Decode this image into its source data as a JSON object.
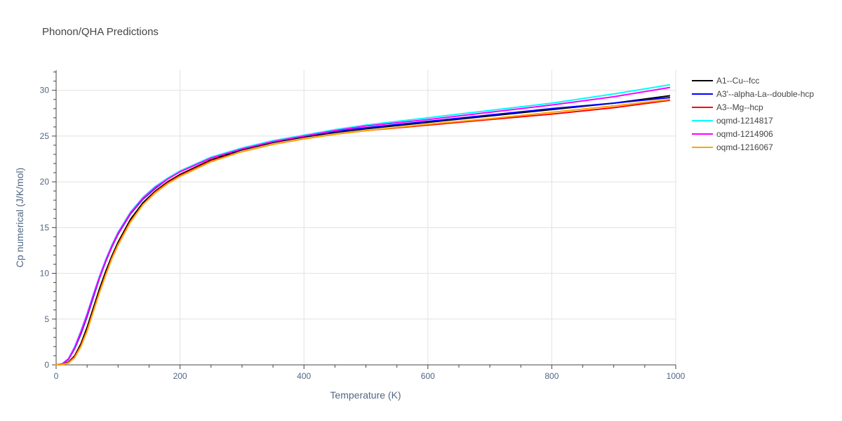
{
  "chart_data": {
    "type": "line",
    "title": "Phonon/QHA Predictions",
    "xlabel": "Temperature (K)",
    "ylabel": "Cp numerical (J/K/mol)",
    "xlim": [
      0,
      1000
    ],
    "ylim": [
      0,
      32.2
    ],
    "xticks": [
      0,
      200,
      400,
      600,
      800,
      1000
    ],
    "yticks": [
      0,
      5,
      10,
      15,
      20,
      25,
      30
    ],
    "grid": true,
    "legend": "top-right",
    "x": [
      0,
      10,
      20,
      30,
      40,
      50,
      60,
      70,
      80,
      90,
      100,
      120,
      140,
      160,
      180,
      200,
      250,
      300,
      350,
      400,
      450,
      500,
      600,
      700,
      800,
      900,
      990
    ],
    "series": [
      {
        "name": "A1--Cu--fcc",
        "color": "#000000",
        "values": [
          0,
          0.05,
          0.3,
          1.0,
          2.3,
          4.1,
          6.2,
          8.3,
          10.2,
          11.9,
          13.4,
          15.9,
          17.7,
          19.0,
          20.0,
          20.8,
          22.4,
          23.5,
          24.3,
          24.9,
          25.4,
          25.8,
          26.5,
          27.2,
          27.9,
          28.6,
          29.4
        ]
      },
      {
        "name": "A3'--alpha-La--double-hcp",
        "color": "#0000ff",
        "values": [
          0,
          0.1,
          0.6,
          1.8,
          3.4,
          5.3,
          7.4,
          9.5,
          11.3,
          12.9,
          14.3,
          16.5,
          18.1,
          19.3,
          20.3,
          21.1,
          22.6,
          23.6,
          24.4,
          25.0,
          25.5,
          25.9,
          26.6,
          27.3,
          28.0,
          28.6,
          29.2
        ]
      },
      {
        "name": "A3--Mg--hcp",
        "color": "#ff0000",
        "values": [
          0,
          0.03,
          0.25,
          0.9,
          2.1,
          3.8,
          5.9,
          8.0,
          9.9,
          11.7,
          13.2,
          15.7,
          17.5,
          18.9,
          19.9,
          20.7,
          22.3,
          23.3,
          24.1,
          24.7,
          25.2,
          25.6,
          26.2,
          26.8,
          27.4,
          28.1,
          28.9
        ]
      },
      {
        "name": "oqmd-1214817",
        "color": "#00ffff",
        "values": [
          0,
          0.12,
          0.7,
          2.0,
          3.7,
          5.6,
          7.7,
          9.7,
          11.5,
          13.1,
          14.5,
          16.7,
          18.3,
          19.5,
          20.4,
          21.2,
          22.7,
          23.7,
          24.5,
          25.1,
          25.7,
          26.2,
          27.0,
          27.8,
          28.6,
          29.6,
          30.6
        ]
      },
      {
        "name": "oqmd-1214906",
        "color": "#ff00ff",
        "values": [
          0,
          0.11,
          0.65,
          1.9,
          3.6,
          5.5,
          7.6,
          9.6,
          11.4,
          13.0,
          14.4,
          16.6,
          18.2,
          19.4,
          20.3,
          21.1,
          22.6,
          23.6,
          24.4,
          25.0,
          25.6,
          26.1,
          26.8,
          27.6,
          28.4,
          29.3,
          30.3
        ]
      },
      {
        "name": "oqmd-1216067",
        "color": "#ffa500",
        "values": [
          0,
          0.03,
          0.2,
          0.8,
          2.0,
          3.7,
          5.8,
          7.9,
          9.8,
          11.6,
          13.1,
          15.6,
          17.5,
          18.8,
          19.8,
          20.6,
          22.2,
          23.3,
          24.1,
          24.7,
          25.2,
          25.6,
          26.3,
          26.9,
          27.6,
          28.3,
          29.0
        ]
      }
    ]
  }
}
